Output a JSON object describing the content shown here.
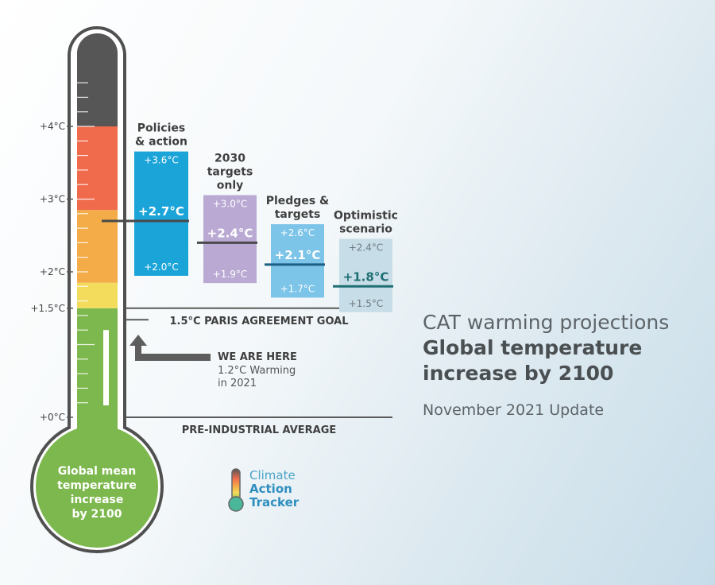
{
  "chart_data": {
    "type": "bar",
    "title": "Global temperature increase by 2100",
    "kicker": "CAT warming projections",
    "date_label": "November 2021 Update",
    "unit": "°C",
    "ylim": [
      0,
      4.8
    ],
    "y_ticks": [
      {
        "value": 0,
        "label": "+0°C"
      },
      {
        "value": 1.5,
        "label": "+1.5°C"
      },
      {
        "value": 2,
        "label": "+2°C"
      },
      {
        "value": 3,
        "label": "+3°C"
      },
      {
        "value": 4,
        "label": "+4°C"
      }
    ],
    "thermometer": {
      "bulb_label_lines": [
        "Global mean",
        "temperature",
        "increase",
        "by 2100"
      ],
      "bands": [
        {
          "from": 0,
          "to": 1.5,
          "color": "#7db84e"
        },
        {
          "from": 1.5,
          "to": 1.85,
          "color": "#f3dc5c"
        },
        {
          "from": 1.85,
          "to": 2.85,
          "color": "#f3ac47"
        },
        {
          "from": 2.85,
          "to": 4.0,
          "color": "#ef6b4c"
        },
        {
          "from": 4.0,
          "to": 4.8,
          "color": "#565656"
        }
      ]
    },
    "series": [
      {
        "name_lines": [
          "Policies",
          "& action"
        ],
        "low": 2.0,
        "central": 2.7,
        "high": 3.6,
        "low_label": "+2.0°C",
        "central_label": "+2.7°C",
        "high_label": "+3.6°C",
        "color": "#1aa4d8",
        "text_color": "#ffffff",
        "line_color": "#4a4a4a"
      },
      {
        "name_lines": [
          "2030",
          "targets",
          "only"
        ],
        "low": 1.9,
        "central": 2.4,
        "high": 3.0,
        "low_label": "+1.9°C",
        "central_label": "+2.4°C",
        "high_label": "+3.0°C",
        "color": "#b9a9d3",
        "text_color": "#ffffff",
        "line_color": "#4a4a4a"
      },
      {
        "name_lines": [
          "Pledges &",
          "targets"
        ],
        "low": 1.7,
        "central": 2.1,
        "high": 2.6,
        "low_label": "+1.7°C",
        "central_label": "+2.1°C",
        "high_label": "+2.6°C",
        "color": "#7cc4e8",
        "text_color": "#ffffff",
        "line_color": "#1e5f86"
      },
      {
        "name_lines": [
          "Optimistic",
          "scenario"
        ],
        "low": 1.5,
        "central": 1.8,
        "high": 2.4,
        "low_label": "+1.5°C",
        "central_label": "+1.8°C",
        "high_label": "+2.4°C",
        "color": "#c7dde7",
        "text_color": "#6f7a80",
        "central_text_color": "#1e6f73",
        "line_color": "#1e6f73"
      }
    ],
    "reference_lines": [
      {
        "value": 1.5,
        "label": "1.5°C PARIS AGREEMENT GOAL"
      },
      {
        "value": 0,
        "label": "PRE-INDUSTRIAL AVERAGE"
      }
    ],
    "current": {
      "value": 1.2,
      "title": "WE ARE HERE",
      "sub_lines": [
        "1.2°C Warming",
        "in 2021"
      ]
    }
  },
  "logo": {
    "line1": "Climate",
    "line2": "Action",
    "line3": "Tracker"
  },
  "colors": {
    "tube_outline": "#505050",
    "label_dark": "#3f3f3f",
    "bulb_green": "#7db84e"
  }
}
